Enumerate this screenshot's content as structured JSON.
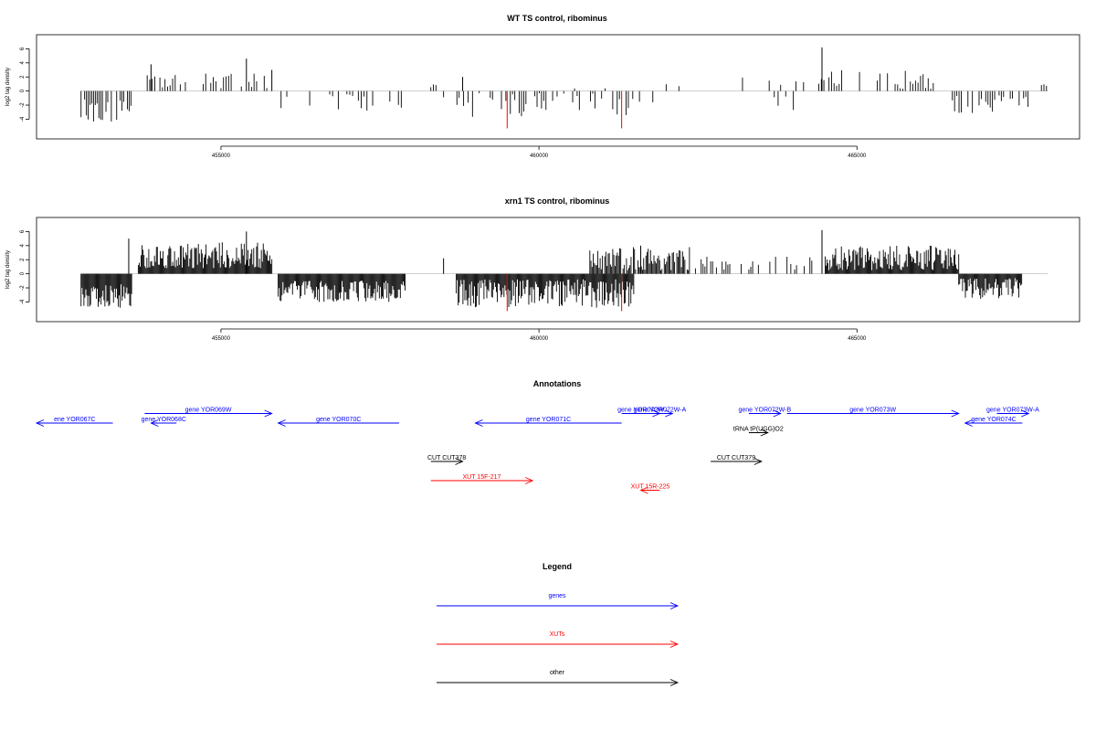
{
  "colors": {
    "genes": "#0000ff",
    "xuts": "#ff0000",
    "other": "#000000",
    "highlight": "#ff0000",
    "bars": "#000000",
    "baseline": "#bfbfbf"
  },
  "chart_data": [
    {
      "type": "bar",
      "title": "WT TS control, ribominus",
      "ylabel": "log2 tag density",
      "xlim": [
        452100,
        468500
      ],
      "ylim": [
        -6.8,
        8
      ],
      "xticks": [
        455000,
        460000,
        465000
      ],
      "xtick_labels": [
        "455000",
        "460000",
        "465000"
      ],
      "yticks": [
        -4,
        -2,
        0,
        2,
        4,
        6
      ],
      "ytick_labels": [
        "-4",
        "-2",
        "0",
        "2",
        "4",
        "6"
      ],
      "highlights": [
        {
          "x": 459500,
          "y": -5.3
        },
        {
          "x": 461300,
          "y": -5.3
        }
      ],
      "segments": [
        {
          "start": 452800,
          "end": 453600,
          "min": 1.2,
          "max": 4.4,
          "sign": -1,
          "density": 0.85,
          "step": 28
        },
        {
          "start": 453800,
          "end": 455800,
          "min": 0.4,
          "max": 3.2,
          "sign": 1,
          "density": 0.5,
          "step": 40
        },
        {
          "start": 455900,
          "end": 458000,
          "min": 0.3,
          "max": 2.8,
          "sign": -1,
          "density": 0.35,
          "step": 45
        },
        {
          "start": 458300,
          "end": 458400,
          "min": 0.5,
          "max": 1.0,
          "sign": 1,
          "density": 1,
          "step": 40
        },
        {
          "start": 458500,
          "end": 461800,
          "min": 0.3,
          "max": 3.8,
          "sign": -1,
          "density": 0.45,
          "step": 35
        },
        {
          "start": 460500,
          "end": 461400,
          "min": 0.3,
          "max": 1.2,
          "sign": 1,
          "density": 0.3,
          "step": 60
        },
        {
          "start": 461800,
          "end": 462200,
          "min": 0.4,
          "max": 1.0,
          "sign": 1,
          "density": 0.3,
          "step": 100
        },
        {
          "start": 463200,
          "end": 464300,
          "min": 0.5,
          "max": 2.3,
          "sign": 1,
          "density": 0.25,
          "step": 60
        },
        {
          "start": 463700,
          "end": 464000,
          "min": 0.5,
          "max": 2.8,
          "sign": -1,
          "density": 0.35,
          "step": 60
        },
        {
          "start": 464400,
          "end": 466200,
          "min": 0.3,
          "max": 3.0,
          "sign": 1,
          "density": 0.45,
          "step": 40
        },
        {
          "start": 466500,
          "end": 467700,
          "min": 0.5,
          "max": 3.2,
          "sign": -1,
          "density": 0.6,
          "step": 35
        },
        {
          "start": 467900,
          "end": 468000,
          "min": 0.6,
          "max": 1.0,
          "sign": 1,
          "density": 1,
          "step": 40
        }
      ],
      "peaks": [
        {
          "x": 455400,
          "y": 4.6
        },
        {
          "x": 464450,
          "y": 6.2
        },
        {
          "x": 455800,
          "y": 3.0
        },
        {
          "x": 453900,
          "y": 3.8
        },
        {
          "x": 458800,
          "y": 2.0
        }
      ]
    },
    {
      "type": "bar",
      "title": "xrn1 TS control, ribominus",
      "ylabel": "log2 tag density",
      "xlim": [
        452100,
        468500
      ],
      "ylim": [
        -6.8,
        8
      ],
      "xticks": [
        455000,
        460000,
        465000
      ],
      "xtick_labels": [
        "455000",
        "460000",
        "465000"
      ],
      "yticks": [
        -4,
        -2,
        0,
        2,
        4,
        6
      ],
      "ytick_labels": [
        "-4",
        "-2",
        "0",
        "2",
        "4",
        "6"
      ],
      "highlights": [
        {
          "x": 459500,
          "y": -5.3
        },
        {
          "x": 461300,
          "y": -5.3
        }
      ],
      "segments": [
        {
          "start": 452800,
          "end": 453600,
          "min": 1.5,
          "max": 5.0,
          "sign": -1,
          "density": 1,
          "step": 15
        },
        {
          "start": 453700,
          "end": 455800,
          "min": 0.8,
          "max": 4.5,
          "sign": 1,
          "density": 1,
          "step": 15
        },
        {
          "start": 455900,
          "end": 457900,
          "min": 1.0,
          "max": 4.0,
          "sign": -1,
          "density": 1,
          "step": 15
        },
        {
          "start": 458700,
          "end": 461500,
          "min": 0.8,
          "max": 4.8,
          "sign": -1,
          "density": 1,
          "step": 15
        },
        {
          "start": 460800,
          "end": 462400,
          "min": 0.5,
          "max": 3.8,
          "sign": 1,
          "density": 0.85,
          "step": 18
        },
        {
          "start": 462400,
          "end": 464300,
          "min": 0.5,
          "max": 2.5,
          "sign": 1,
          "density": 0.5,
          "step": 30
        },
        {
          "start": 464500,
          "end": 466600,
          "min": 0.5,
          "max": 4.0,
          "sign": 1,
          "density": 1,
          "step": 15
        },
        {
          "start": 466600,
          "end": 467600,
          "min": 0.6,
          "max": 3.6,
          "sign": -1,
          "density": 1,
          "step": 15
        }
      ],
      "peaks": [
        {
          "x": 455400,
          "y": 6.0
        },
        {
          "x": 464450,
          "y": 6.2
        },
        {
          "x": 453550,
          "y": 5.0
        },
        {
          "x": 458500,
          "y": 2.2
        },
        {
          "x": 461600,
          "y": 4.0
        }
      ]
    }
  ],
  "annotations": {
    "title": "Annotations",
    "features": [
      {
        "label": "ene YOR067C",
        "start": 452100,
        "end": 453300,
        "dir": -1,
        "type": "genes",
        "row": 0
      },
      {
        "label": "gene YOR069W",
        "start": 453800,
        "end": 455800,
        "dir": 1,
        "type": "genes",
        "row": -1
      },
      {
        "label": "gene YOR068C",
        "start": 453900,
        "end": 454300,
        "dir": -1,
        "type": "genes",
        "row": 0
      },
      {
        "label": "gene YOR070C",
        "start": 455900,
        "end": 457800,
        "dir": -1,
        "type": "genes",
        "row": 0
      },
      {
        "label": "gene YOR071C",
        "start": 459000,
        "end": 461300,
        "dir": -1,
        "type": "genes",
        "row": 0
      },
      {
        "label": "gene YOR072W",
        "start": 461300,
        "end": 461900,
        "dir": 1,
        "type": "genes",
        "row": -1
      },
      {
        "label": "gene YOR072W-A",
        "start": 461700,
        "end": 462100,
        "dir": 1,
        "type": "genes",
        "row": -1
      },
      {
        "label": "gene YOR072W-B",
        "start": 463300,
        "end": 463800,
        "dir": 1,
        "type": "genes",
        "row": -1
      },
      {
        "label": "gene YOR073W",
        "start": 463900,
        "end": 466600,
        "dir": 1,
        "type": "genes",
        "row": -1
      },
      {
        "label": "gene YOR073W-A",
        "start": 467200,
        "end": 467700,
        "dir": 1,
        "type": "genes",
        "row": -1
      },
      {
        "label": "gene YOR074C",
        "start": 466700,
        "end": 467600,
        "dir": -1,
        "type": "genes",
        "row": 0
      },
      {
        "label": "tRNA tP(UGG)O2",
        "start": 463300,
        "end": 463600,
        "dir": 1,
        "type": "other",
        "row": 1
      },
      {
        "label": "CUT CUT378",
        "start": 458300,
        "end": 458800,
        "dir": 1,
        "type": "other",
        "row": 4
      },
      {
        "label": "CUT CUT379",
        "start": 462700,
        "end": 463500,
        "dir": 1,
        "type": "other",
        "row": 4
      },
      {
        "label": "XUT 15F-217",
        "start": 458300,
        "end": 459900,
        "dir": 1,
        "type": "xuts",
        "row": 6
      },
      {
        "label": "XUT 15R-225",
        "start": 461600,
        "end": 461900,
        "dir": -1,
        "type": "xuts",
        "row": 7
      }
    ]
  },
  "legend": {
    "title": "Legend",
    "items": [
      {
        "label": "genes",
        "type": "genes"
      },
      {
        "label": "XUTs",
        "type": "xuts"
      },
      {
        "label": "other",
        "type": "other"
      }
    ]
  }
}
